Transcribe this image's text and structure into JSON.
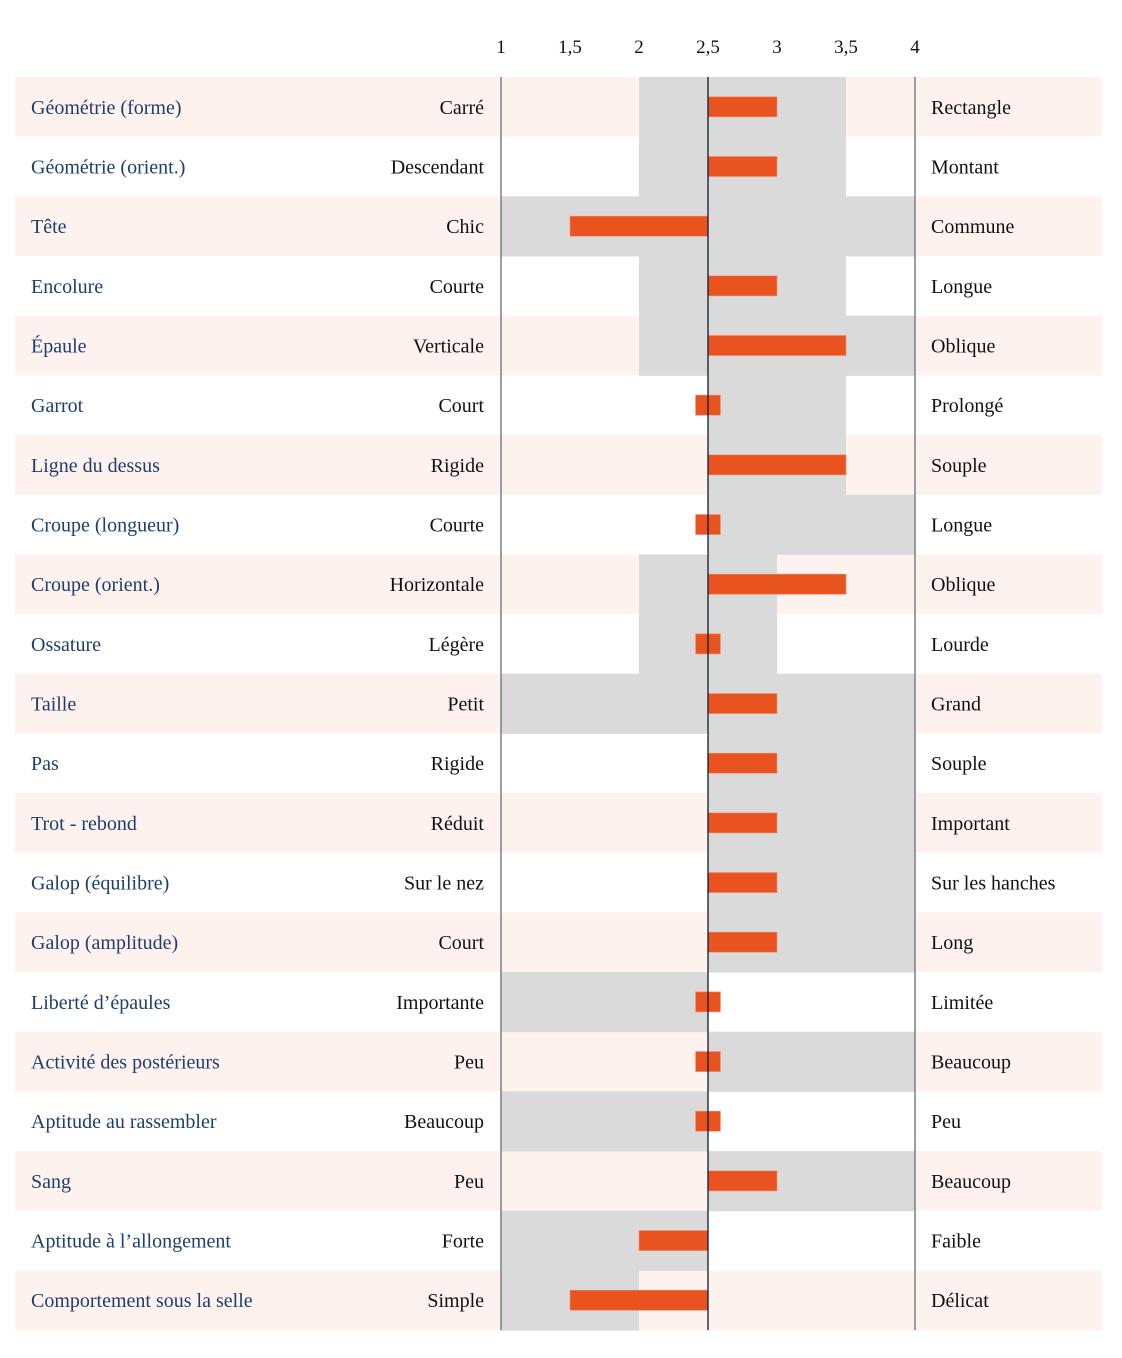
{
  "chart_data": {
    "type": "bar",
    "orientation": "horizontal",
    "title": "",
    "xlabel": "",
    "ylabel": "",
    "xlim": [
      1,
      4
    ],
    "baseline": 2.5,
    "x_ticks": [
      {
        "value": 1,
        "label": "1"
      },
      {
        "value": 1.5,
        "label": "1,5"
      },
      {
        "value": 2,
        "label": "2"
      },
      {
        "value": 2.5,
        "label": "2,5"
      },
      {
        "value": 3,
        "label": "3"
      },
      {
        "value": 3.5,
        "label": "3,5"
      },
      {
        "value": 4,
        "label": "4"
      }
    ],
    "grid": false,
    "legend": "none",
    "colors": {
      "bar": "#e8531f",
      "range": "#dadada",
      "row_alt": "#fdf2ee",
      "row": "#ffffff",
      "criterion_text": "#1d3f6e",
      "pole_text": "#111111",
      "axis_line": "#7a7f8a",
      "baseline_line": "#0e1a33"
    },
    "series": [
      {
        "name": "Valeur",
        "rows": [
          {
            "criterion": "Géométrie (forme)",
            "low": "Carré",
            "high": "Rectangle",
            "value": 3,
            "range": [
              2,
              3.5
            ]
          },
          {
            "criterion": "Géométrie (orient.)",
            "low": "Descendant",
            "high": "Montant",
            "value": 3,
            "range": [
              2,
              3.5
            ]
          },
          {
            "criterion": "Tête",
            "low": "Chic",
            "high": "Commune",
            "value": 1.5,
            "range": [
              1,
              4
            ]
          },
          {
            "criterion": "Encolure",
            "low": "Courte",
            "high": "Longue",
            "value": 3,
            "range": [
              2,
              3.5
            ]
          },
          {
            "criterion": "Épaule",
            "low": "Verticale",
            "high": "Oblique",
            "value": 3.5,
            "range": [
              2,
              4
            ]
          },
          {
            "criterion": "Garrot",
            "low": "Court",
            "high": "Prolongé",
            "value": 2.5,
            "range": [
              2.5,
              3.5
            ]
          },
          {
            "criterion": "Ligne du dessus",
            "low": "Rigide",
            "high": "Souple",
            "value": 3.5,
            "range": [
              2.5,
              3.5
            ]
          },
          {
            "criterion": "Croupe (longueur)",
            "low": "Courte",
            "high": "Longue",
            "value": 2.5,
            "range": [
              2.5,
              4
            ]
          },
          {
            "criterion": "Croupe (orient.)",
            "low": "Horizontale",
            "high": "Oblique",
            "value": 3.5,
            "range": [
              2,
              3
            ]
          },
          {
            "criterion": "Ossature",
            "low": "Légère",
            "high": "Lourde",
            "value": 2.5,
            "range": [
              2,
              3
            ]
          },
          {
            "criterion": "Taille",
            "low": "Petit",
            "high": "Grand",
            "value": 3,
            "range": [
              1,
              4
            ]
          },
          {
            "criterion": "Pas",
            "low": "Rigide",
            "high": "Souple",
            "value": 3,
            "range": [
              2.5,
              4
            ]
          },
          {
            "criterion": "Trot - rebond",
            "low": "Réduit",
            "high": "Important",
            "value": 3,
            "range": [
              2.5,
              4
            ]
          },
          {
            "criterion": "Galop (équilibre)",
            "low": "Sur le nez",
            "high": "Sur les hanches",
            "value": 3,
            "range": [
              2.5,
              4
            ]
          },
          {
            "criterion": "Galop (amplitude)",
            "low": "Court",
            "high": "Long",
            "value": 3,
            "range": [
              2.5,
              4
            ]
          },
          {
            "criterion": "Liberté d’épaules",
            "low": "Importante",
            "high": "Limitée",
            "value": 2.5,
            "range": [
              1,
              2.5
            ]
          },
          {
            "criterion": "Activité des postérieurs",
            "low": "Peu",
            "high": "Beaucoup",
            "value": 2.5,
            "range": [
              2.5,
              4
            ]
          },
          {
            "criterion": "Aptitude au rassembler",
            "low": "Beaucoup",
            "high": "Peu",
            "value": 2.5,
            "range": [
              1,
              2.5
            ]
          },
          {
            "criterion": "Sang",
            "low": "Peu",
            "high": "Beaucoup",
            "value": 3,
            "range": [
              2.5,
              4
            ]
          },
          {
            "criterion": "Aptitude à l’allongement",
            "low": "Forte",
            "high": "Faible",
            "value": 2,
            "range": [
              1,
              2.5
            ]
          },
          {
            "criterion": "Comportement sous la selle",
            "low": "Simple",
            "high": "Délicat",
            "value": 1.5,
            "range": [
              1,
              2
            ]
          }
        ]
      }
    ]
  }
}
